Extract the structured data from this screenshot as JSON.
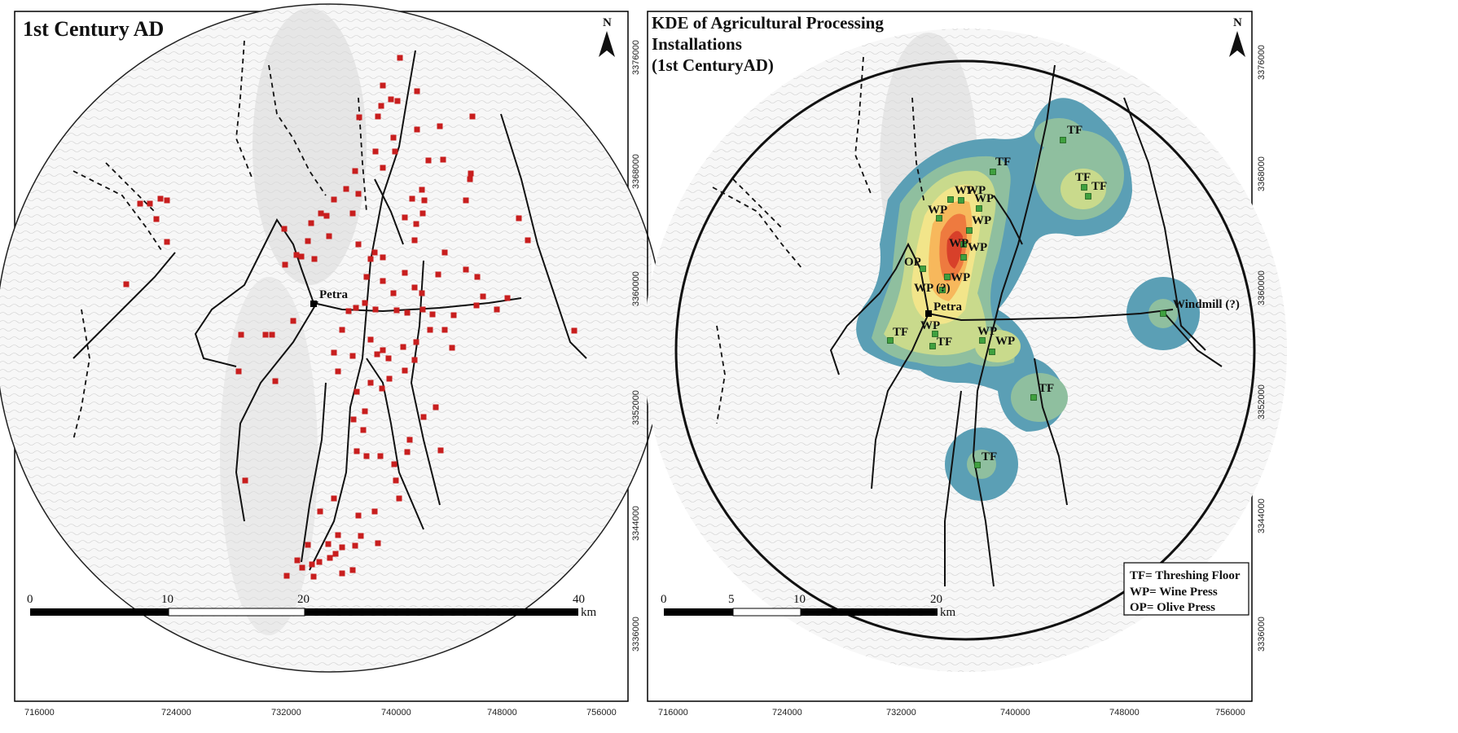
{
  "left_map": {
    "title": "1st Century AD",
    "north": "N",
    "city": "Petra",
    "scale_labels": [
      "0",
      "10",
      "20",
      "40"
    ],
    "scale_unit": "km",
    "x_ticks": [
      "716000",
      "724000",
      "732000",
      "740000",
      "748000",
      "756000"
    ],
    "y_ticks": [
      "3376000",
      "3368000",
      "3360000",
      "3352000",
      "3344000",
      "3336000"
    ],
    "site_color": "#c81e1e"
  },
  "right_map": {
    "title_lines": [
      "KDE of Agricultural Processing",
      "Installations",
      "(1st CenturyAD)"
    ],
    "north": "N",
    "city": "Petra",
    "scale_labels": [
      "0",
      "5",
      "10",
      "20"
    ],
    "scale_unit": "km",
    "x_ticks": [
      "716000",
      "724000",
      "732000",
      "740000",
      "748000",
      "756000"
    ],
    "y_ticks": [
      "3376000",
      "3368000",
      "3360000",
      "3352000",
      "3344000",
      "3336000"
    ],
    "legend": [
      "TF= Threshing Floor",
      "WP= Wine Press",
      "OP= Olive Press"
    ],
    "site_labels": [
      "TF",
      "TF",
      "TF",
      "TF",
      "WP",
      "WP",
      "WP",
      "WP",
      "WP",
      "WP",
      "WP",
      "OP",
      "WP (?)",
      "WP",
      "WP",
      "TF",
      "TF",
      "WP",
      "WP",
      "Windmill (?)",
      "TF",
      "TF"
    ],
    "kde_colors": [
      "#5b9fb5",
      "#8fbf9f",
      "#c9da8c",
      "#f2e58a",
      "#f7b85c",
      "#ee7a3f",
      "#d8402a"
    ],
    "site_color": "#3fa03f"
  }
}
